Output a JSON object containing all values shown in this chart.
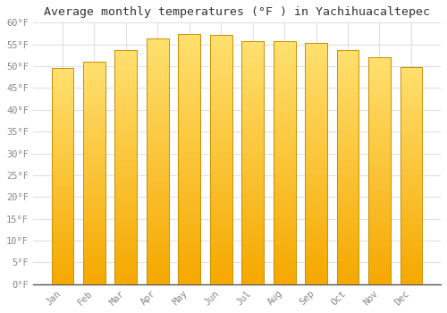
{
  "title": "Average monthly temperatures (°F ) in Yachihuacaltepec",
  "months": [
    "Jan",
    "Feb",
    "Mar",
    "Apr",
    "May",
    "Jun",
    "Jul",
    "Aug",
    "Sep",
    "Oct",
    "Nov",
    "Dec"
  ],
  "values": [
    49.5,
    51.1,
    53.8,
    56.3,
    57.4,
    57.2,
    55.8,
    55.8,
    55.4,
    53.8,
    52.1,
    49.8
  ],
  "bar_color_bottom": "#F5A800",
  "bar_color_top": "#FFE070",
  "ylim": [
    0,
    60
  ],
  "yticks": [
    0,
    5,
    10,
    15,
    20,
    25,
    30,
    35,
    40,
    45,
    50,
    55,
    60
  ],
  "ytick_labels": [
    "0°F",
    "5°F",
    "10°F",
    "15°F",
    "20°F",
    "25°F",
    "30°F",
    "35°F",
    "40°F",
    "45°F",
    "50°F",
    "55°F",
    "60°F"
  ],
  "background_color": "#ffffff",
  "grid_color": "#e0e0e0",
  "title_fontsize": 9.5,
  "tick_fontsize": 7.5,
  "tick_color": "#888888",
  "bar_edge_color": "#c89000",
  "font_family": "monospace",
  "n_gradient_steps": 100
}
